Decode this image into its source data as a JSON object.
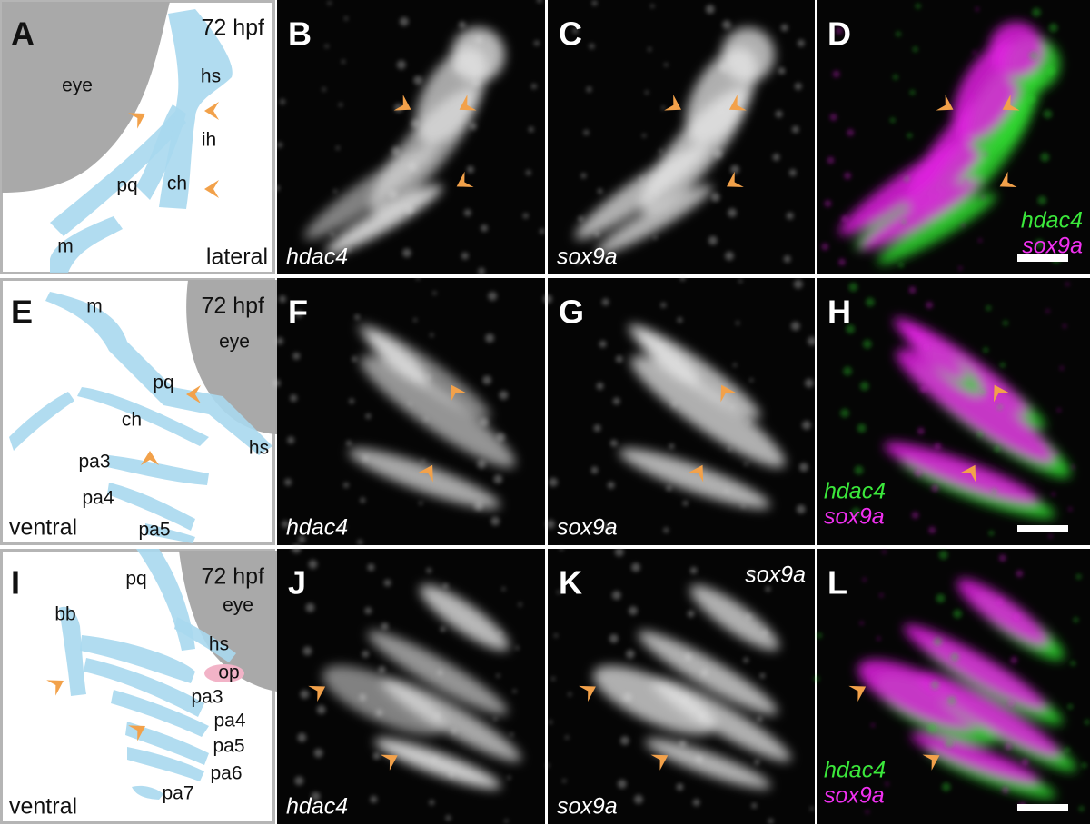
{
  "figure": {
    "panels": [
      {
        "letter": "A",
        "stage": "72 hpf",
        "view": "lateral",
        "structures": [
          "eye",
          "hs",
          "ih",
          "pq",
          "ch",
          "m"
        ]
      },
      {
        "letter": "B",
        "gene": "hdac4"
      },
      {
        "letter": "C",
        "gene": "sox9a"
      },
      {
        "letter": "D",
        "genes": [
          "hdac4",
          "sox9a"
        ]
      },
      {
        "letter": "E",
        "stage": "72 hpf",
        "view": "ventral",
        "structures": [
          "m",
          "eye",
          "pq",
          "ch",
          "hs",
          "pa3",
          "pa4",
          "pa5"
        ]
      },
      {
        "letter": "F",
        "gene": "hdac4"
      },
      {
        "letter": "G",
        "gene": "sox9a"
      },
      {
        "letter": "H",
        "genes": [
          "hdac4",
          "sox9a"
        ]
      },
      {
        "letter": "I",
        "stage": "72 hpf",
        "view": "ventral",
        "structures": [
          "pq",
          "eye",
          "bb",
          "hs",
          "op",
          "pa3",
          "pa4",
          "pa5",
          "pa6",
          "pa7"
        ]
      },
      {
        "letter": "J",
        "gene": "hdac4"
      },
      {
        "letter": "K",
        "gene": "sox9a",
        "channel": "sox9a"
      },
      {
        "letter": "L",
        "genes": [
          "hdac4",
          "sox9a"
        ]
      }
    ]
  }
}
